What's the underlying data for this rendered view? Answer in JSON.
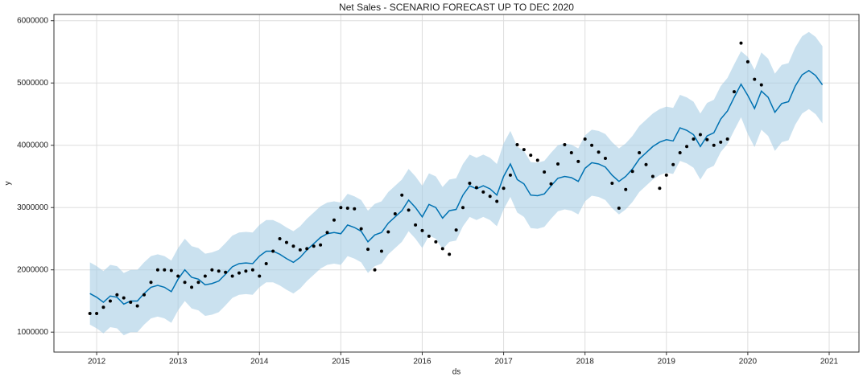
{
  "chart_data": {
    "type": "forecast",
    "title": "Net Sales - SCENARIO FORECAST UP TO DEC 2020",
    "xlabel": "ds",
    "ylabel": "y",
    "xlim": [
      2011.475,
      2021.366
    ],
    "xticks": [
      2012,
      2013,
      2014,
      2015,
      2016,
      2017,
      2018,
      2019,
      2020,
      2021
    ],
    "ylim": [
      680000,
      6100000
    ],
    "yticks": [
      1000000,
      2000000,
      3000000,
      4000000,
      5000000,
      6000000
    ],
    "grid": true,
    "points": {
      "color": "#000000",
      "x": [
        2011.917,
        2012,
        2012.083,
        2012.167,
        2012.25,
        2012.333,
        2012.417,
        2012.5,
        2012.583,
        2012.667,
        2012.75,
        2012.833,
        2012.917,
        2013,
        2013.083,
        2013.167,
        2013.25,
        2013.333,
        2013.417,
        2013.5,
        2013.583,
        2013.667,
        2013.75,
        2013.833,
        2013.917,
        2014,
        2014.083,
        2014.167,
        2014.25,
        2014.333,
        2014.417,
        2014.5,
        2014.583,
        2014.667,
        2014.75,
        2014.833,
        2014.917,
        2015,
        2015.083,
        2015.167,
        2015.25,
        2015.333,
        2015.417,
        2015.5,
        2015.583,
        2015.667,
        2015.75,
        2015.833,
        2015.917,
        2016,
        2016.083,
        2016.167,
        2016.25,
        2016.333,
        2016.417,
        2016.5,
        2016.583,
        2016.667,
        2016.75,
        2016.833,
        2016.917,
        2017,
        2017.083,
        2017.167,
        2017.25,
        2017.333,
        2017.417,
        2017.5,
        2017.583,
        2017.667,
        2017.75,
        2017.833,
        2017.917,
        2018,
        2018.083,
        2018.167,
        2018.25,
        2018.333,
        2018.417,
        2018.5,
        2018.583,
        2018.667,
        2018.75,
        2018.833,
        2018.917,
        2019,
        2019.083,
        2019.167,
        2019.25,
        2019.333,
        2019.417,
        2019.5,
        2019.583,
        2019.667,
        2019.75,
        2019.833,
        2019.917,
        2020,
        2020.083,
        2020.167
      ],
      "values": [
        1300000,
        1300000,
        1400000,
        1500000,
        1600000,
        1550000,
        1480000,
        1420000,
        1600000,
        1800000,
        2000000,
        2000000,
        1990000,
        1900000,
        1800000,
        1720000,
        1800000,
        1900000,
        2000000,
        1980000,
        1960000,
        1900000,
        1950000,
        1980000,
        2000000,
        1900000,
        2100000,
        2300000,
        2500000,
        2440000,
        2380000,
        2320000,
        2340000,
        2380000,
        2400000,
        2600000,
        2800000,
        3000000,
        2990000,
        2980000,
        2660000,
        2330000,
        2000000,
        2300000,
        2610000,
        2900000,
        3200000,
        2960000,
        2720000,
        2630000,
        2540000,
        2450000,
        2340000,
        2250000,
        2640000,
        3000000,
        3390000,
        3320000,
        3250000,
        3180000,
        3100000,
        3310000,
        3520000,
        4010000,
        3930000,
        3840000,
        3760000,
        3570000,
        3380000,
        3700000,
        4010000,
        3880000,
        3740000,
        4100000,
        4000000,
        3890000,
        3790000,
        3390000,
        2990000,
        3290000,
        3580000,
        3880000,
        3690000,
        3500000,
        3310000,
        3520000,
        3690000,
        3880000,
        3980000,
        4100000,
        4170000,
        4090000,
        4000000,
        4050000,
        4100000,
        4860000,
        5640000,
        5340000,
        5060000,
        4970000
      ]
    },
    "forecast": {
      "color": "#0072b2",
      "band_color": "#a6cde5",
      "x": [
        2011.917,
        2012,
        2012.083,
        2012.167,
        2012.25,
        2012.333,
        2012.417,
        2012.5,
        2012.583,
        2012.667,
        2012.75,
        2012.833,
        2012.917,
        2013,
        2013.083,
        2013.167,
        2013.25,
        2013.333,
        2013.417,
        2013.5,
        2013.583,
        2013.667,
        2013.75,
        2013.833,
        2013.917,
        2014,
        2014.083,
        2014.167,
        2014.25,
        2014.333,
        2014.417,
        2014.5,
        2014.583,
        2014.667,
        2014.75,
        2014.833,
        2014.917,
        2015,
        2015.083,
        2015.167,
        2015.25,
        2015.333,
        2015.417,
        2015.5,
        2015.583,
        2015.667,
        2015.75,
        2015.833,
        2015.917,
        2016,
        2016.083,
        2016.167,
        2016.25,
        2016.333,
        2016.417,
        2016.5,
        2016.583,
        2016.667,
        2016.75,
        2016.833,
        2016.917,
        2017,
        2017.083,
        2017.167,
        2017.25,
        2017.333,
        2017.417,
        2017.5,
        2017.583,
        2017.667,
        2017.75,
        2017.833,
        2017.917,
        2018,
        2018.083,
        2018.167,
        2018.25,
        2018.333,
        2018.417,
        2018.5,
        2018.583,
        2018.667,
        2018.75,
        2018.833,
        2018.917,
        2019,
        2019.083,
        2019.167,
        2019.25,
        2019.333,
        2019.417,
        2019.5,
        2019.583,
        2019.667,
        2019.75,
        2019.833,
        2019.917,
        2020,
        2020.083,
        2020.167,
        2020.25,
        2020.333,
        2020.417,
        2020.5,
        2020.583,
        2020.667,
        2020.75,
        2020.833,
        2020.917
      ],
      "values": [
        1620000,
        1560000,
        1480000,
        1580000,
        1560000,
        1450000,
        1500000,
        1500000,
        1620000,
        1720000,
        1750000,
        1720000,
        1650000,
        1850000,
        2000000,
        1880000,
        1850000,
        1760000,
        1780000,
        1820000,
        1930000,
        2050000,
        2100000,
        2110000,
        2100000,
        2220000,
        2300000,
        2300000,
        2250000,
        2180000,
        2120000,
        2200000,
        2320000,
        2420000,
        2520000,
        2580000,
        2600000,
        2580000,
        2720000,
        2680000,
        2620000,
        2450000,
        2560000,
        2600000,
        2750000,
        2850000,
        2950000,
        3120000,
        3000000,
        2850000,
        3050000,
        3000000,
        2830000,
        2950000,
        2970000,
        3200000,
        3350000,
        3300000,
        3350000,
        3300000,
        3200000,
        3500000,
        3700000,
        3450000,
        3380000,
        3200000,
        3190000,
        3220000,
        3350000,
        3470000,
        3500000,
        3480000,
        3420000,
        3630000,
        3720000,
        3700000,
        3650000,
        3520000,
        3420000,
        3500000,
        3620000,
        3780000,
        3880000,
        3980000,
        4050000,
        4090000,
        4070000,
        4280000,
        4240000,
        4170000,
        3980000,
        4150000,
        4200000,
        4420000,
        4550000,
        4770000,
        4980000,
        4800000,
        4590000,
        4870000,
        4770000,
        4530000,
        4670000,
        4700000,
        4950000,
        5130000,
        5200000,
        5120000,
        4970000
      ],
      "upper": [
        2120000,
        2060000,
        1980000,
        2080000,
        2060000,
        1950000,
        2000000,
        2000000,
        2120000,
        2220000,
        2250000,
        2220000,
        2150000,
        2350000,
        2500000,
        2380000,
        2350000,
        2260000,
        2280000,
        2320000,
        2430000,
        2550000,
        2600000,
        2610000,
        2600000,
        2720000,
        2800000,
        2800000,
        2750000,
        2680000,
        2620000,
        2700000,
        2820000,
        2920000,
        3020000,
        3080000,
        3100000,
        3080000,
        3220000,
        3180000,
        3120000,
        2950000,
        3060000,
        3100000,
        3250000,
        3350000,
        3450000,
        3620000,
        3500000,
        3350000,
        3550000,
        3500000,
        3330000,
        3450000,
        3470000,
        3700000,
        3850000,
        3800000,
        3850000,
        3800000,
        3700000,
        4030000,
        4230000,
        3980000,
        3910000,
        3730000,
        3720000,
        3750000,
        3880000,
        4000000,
        4030000,
        4010000,
        3950000,
        4160000,
        4250000,
        4230000,
        4180000,
        4050000,
        3950000,
        4030000,
        4150000,
        4310000,
        4410000,
        4510000,
        4580000,
        4620000,
        4600000,
        4810000,
        4770000,
        4700000,
        4510000,
        4680000,
        4730000,
        4950000,
        5080000,
        5300000,
        5510000,
        5420000,
        5210000,
        5490000,
        5390000,
        5150000,
        5290000,
        5320000,
        5570000,
        5750000,
        5820000,
        5740000,
        5590000
      ],
      "lower": [
        1120000,
        1060000,
        980000,
        1080000,
        1060000,
        950000,
        1000000,
        1000000,
        1120000,
        1220000,
        1250000,
        1220000,
        1150000,
        1350000,
        1500000,
        1380000,
        1350000,
        1260000,
        1280000,
        1320000,
        1430000,
        1550000,
        1600000,
        1610000,
        1600000,
        1720000,
        1800000,
        1800000,
        1750000,
        1680000,
        1620000,
        1700000,
        1820000,
        1920000,
        2020000,
        2080000,
        2100000,
        2080000,
        2220000,
        2180000,
        2120000,
        1950000,
        2060000,
        2100000,
        2250000,
        2350000,
        2450000,
        2620000,
        2500000,
        2350000,
        2550000,
        2500000,
        2330000,
        2450000,
        2470000,
        2700000,
        2850000,
        2800000,
        2850000,
        2800000,
        2700000,
        2970000,
        3170000,
        2920000,
        2850000,
        2670000,
        2660000,
        2690000,
        2820000,
        2940000,
        2970000,
        2950000,
        2890000,
        3100000,
        3190000,
        3170000,
        3120000,
        2990000,
        2890000,
        2970000,
        3090000,
        3250000,
        3350000,
        3450000,
        3520000,
        3560000,
        3540000,
        3750000,
        3710000,
        3640000,
        3450000,
        3620000,
        3670000,
        3890000,
        4020000,
        4240000,
        4450000,
        4180000,
        3970000,
        4250000,
        4150000,
        3910000,
        4050000,
        4080000,
        4330000,
        4510000,
        4580000,
        4500000,
        4350000
      ]
    }
  }
}
